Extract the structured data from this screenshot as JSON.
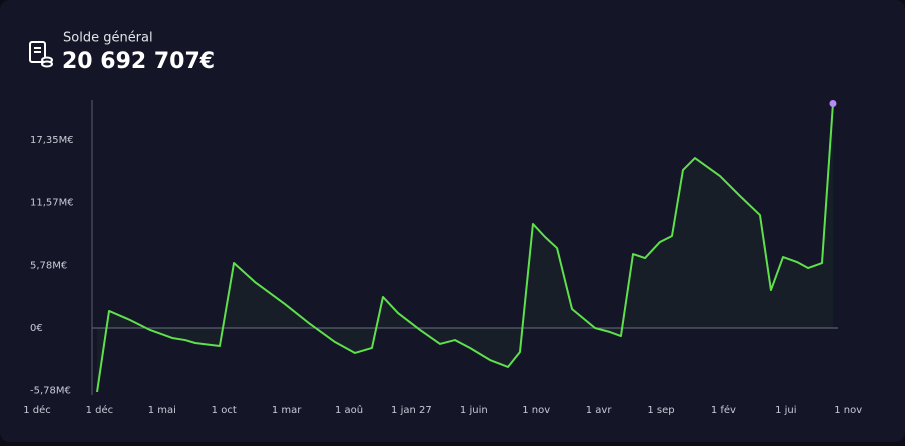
{
  "header": {
    "label": "Solde général",
    "total": "20 692 707€"
  },
  "chart_data": {
    "type": "line",
    "color": "#5fe04c",
    "end_marker_color": "#b58cf2",
    "xlim": [
      0,
      65
    ],
    "ylim": [
      -6000000,
      21000000
    ],
    "xticks": [
      {
        "value": 0,
        "label": "1 déc"
      },
      {
        "value": 5,
        "label": "1 déc"
      },
      {
        "value": 10,
        "label": "1 mai"
      },
      {
        "value": 15,
        "label": "1 oct"
      },
      {
        "value": 20,
        "label": "1 mar"
      },
      {
        "value": 25,
        "label": "1 aoû"
      },
      {
        "value": 30,
        "label": "1 jan 27"
      },
      {
        "value": 35,
        "label": "1 juin"
      },
      {
        "value": 40,
        "label": "1 nov"
      },
      {
        "value": 45,
        "label": "1 avr"
      },
      {
        "value": 50,
        "label": "1 sep"
      },
      {
        "value": 55,
        "label": "1 fév"
      },
      {
        "value": 60,
        "label": "1 jui"
      },
      {
        "value": 65,
        "label": "1 nov"
      }
    ],
    "yticks": [
      {
        "value": -5780000,
        "label": "-5,78M€"
      },
      {
        "value": 0,
        "label": "0€"
      },
      {
        "value": 5780000,
        "label": "5,78M€"
      },
      {
        "value": 11570000,
        "label": "11,57M€"
      },
      {
        "value": 17350000,
        "label": "17,35M€"
      }
    ],
    "x": [
      4.81,
      5.77,
      7.45,
      9.05,
      10.82,
      11.86,
      12.66,
      14.66,
      15.79,
      17.47,
      19.87,
      21.88,
      23.88,
      25.48,
      26.84,
      27.72,
      28.93,
      30.69,
      32.29,
      33.49,
      34.7,
      36.3,
      37.74,
      38.7,
      39.74,
      40.71,
      41.67,
      42.87,
      44.71,
      45.91,
      46.79,
      47.76,
      48.72,
      49.92,
      50.88,
      51.76,
      52.72,
      54.73,
      56.33,
      57.93,
      58.81,
      59.78,
      60.9,
      61.78,
      62.9,
      63.78
    ],
    "values": [
      -5900000,
      1570000,
      740000,
      -180000,
      -920000,
      -1110000,
      -1380000,
      -1660000,
      5990000,
      4240000,
      2210000,
      370000,
      -1290000,
      -2300000,
      -1840000,
      2860000,
      1380000,
      -180000,
      -1470000,
      -1110000,
      -1840000,
      -2950000,
      -3590000,
      -2210000,
      9590000,
      8390000,
      7370000,
      1750000,
      0,
      -370000,
      -740000,
      6820000,
      6450000,
      7930000,
      8480000,
      14560000,
      15670000,
      14010000,
      12170000,
      10410000,
      3500000,
      6540000,
      6080000,
      5530000,
      5990000,
      20692707
    ]
  }
}
